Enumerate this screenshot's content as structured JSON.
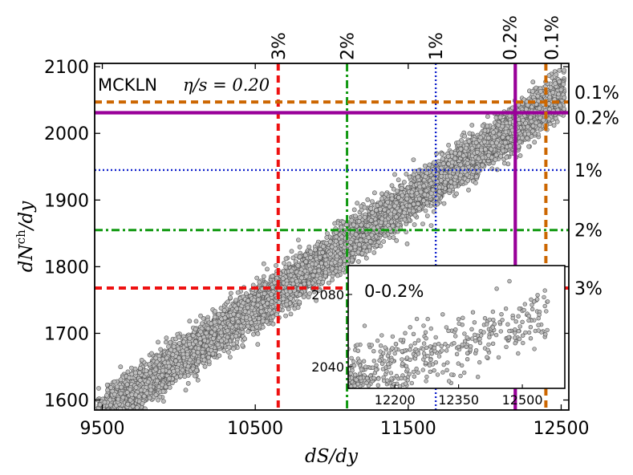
{
  "chart_data": {
    "type": "scatter",
    "annotation": {
      "model": "MCKLN",
      "eta_s": "η/s = 0.20"
    },
    "xlabel": "dS/dy",
    "ylabel": "dN^ch/dy",
    "xlim": [
      9450,
      12550
    ],
    "ylim": [
      1585,
      2105
    ],
    "xticks": [
      "9500",
      "10500",
      "11500",
      "12500"
    ],
    "xtick_values": [
      9500,
      10500,
      11500,
      12500
    ],
    "yticks": [
      "1600",
      "1700",
      "1800",
      "1900",
      "2000",
      "2100"
    ],
    "ytick_values": [
      1600,
      1700,
      1800,
      1900,
      2000,
      2100
    ],
    "cutoffs": [
      {
        "label": "3%",
        "x": 10650,
        "y": 1768,
        "color": "#ee1111",
        "style": "dashed"
      },
      {
        "label": "2%",
        "x": 11100,
        "y": 1855,
        "color": "#119911",
        "style": "dashdot"
      },
      {
        "label": "1%",
        "x": 11680,
        "y": 1945,
        "color": "#1122cc",
        "style": "dotted"
      },
      {
        "label": "0.2%",
        "x": 12200,
        "y": 2031,
        "color": "#990099",
        "style": "solid"
      },
      {
        "label": "0.1%",
        "x": 12400,
        "y": 2047,
        "color": "#cc6600",
        "style": "dashed"
      }
    ],
    "scatter_trend": {
      "slope": 0.1595,
      "intercept": 64,
      "spread_sd": 15,
      "n_points": 9000,
      "x_from": 9470,
      "x_to": 12520
    },
    "inset": {
      "title": "0-0.2%",
      "xlim": [
        12090,
        12600
      ],
      "ylim": [
        2028,
        2096
      ],
      "xticks": [
        "12200",
        "12350",
        "12500"
      ],
      "xtick_values": [
        12200,
        12350,
        12500
      ],
      "yticks": [
        "2040",
        "2080"
      ],
      "ytick_values": [
        2040,
        2080
      ],
      "n_points": 420
    },
    "marker_fill": "#bdbdbd",
    "marker_edge": "#555555"
  }
}
